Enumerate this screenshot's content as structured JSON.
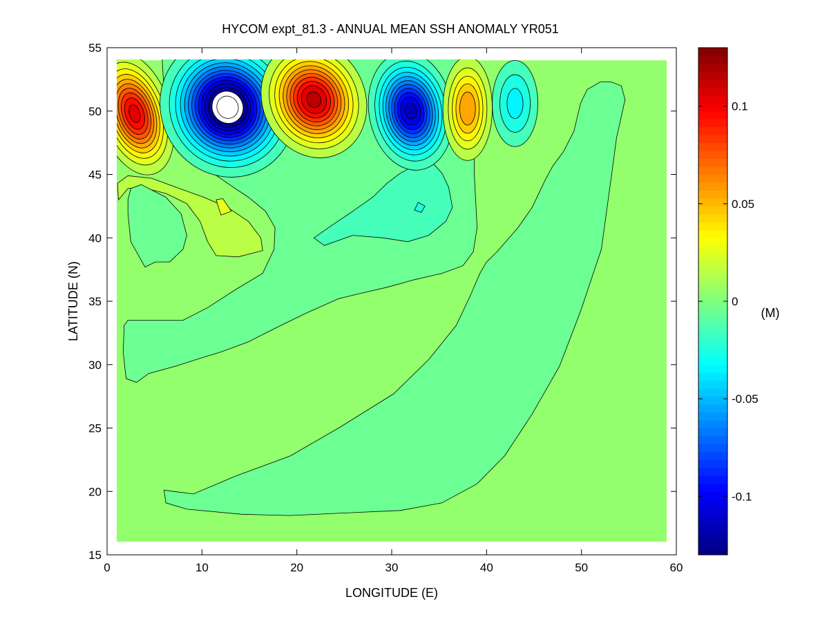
{
  "chart_data": {
    "type": "contour",
    "title": "HYCOM expt_81.3 - ANNUAL MEAN SSH ANOMALY YR051",
    "xlabel": "LONGITUDE (E)",
    "ylabel": "LATITUDE (N)",
    "xlim": [
      0,
      60
    ],
    "ylim": [
      15,
      55
    ],
    "data_extent": {
      "lon": [
        1,
        59
      ],
      "lat": [
        16,
        54
      ]
    },
    "xticks": [
      "0",
      "10",
      "20",
      "30",
      "40",
      "50",
      "60"
    ],
    "xtick_values": [
      0,
      10,
      20,
      30,
      40,
      50,
      60
    ],
    "yticks": [
      "15",
      "20",
      "25",
      "30",
      "35",
      "40",
      "45",
      "50",
      "55"
    ],
    "ytick_values": [
      15,
      20,
      25,
      30,
      35,
      40,
      45,
      50,
      55
    ],
    "contour_interval": 0.01,
    "background_value": 0.005,
    "colorbar": {
      "label": "(M)",
      "clim": [
        -0.13,
        0.13
      ],
      "ticks": [
        "-0.1",
        "-0.05",
        "0",
        "0.05",
        "0.1"
      ],
      "tick_values": [
        -0.1,
        -0.05,
        0,
        0.05,
        0.1
      ],
      "colormap": "jet"
    },
    "regions": [
      {
        "name": "negative-anomaly-band",
        "value": -0.005,
        "points": [
          [
            5.8,
            54.1
          ],
          [
            38.7,
            54.1
          ],
          [
            38.7,
            45.1
          ],
          [
            39.0,
            40.8
          ],
          [
            38.6,
            38.9
          ],
          [
            37.5,
            37.8
          ],
          [
            35.3,
            37.2
          ],
          [
            32.4,
            36.7
          ],
          [
            29.5,
            36.1
          ],
          [
            26.6,
            35.6
          ],
          [
            24.4,
            35.2
          ],
          [
            20.8,
            34.0
          ],
          [
            17.8,
            32.9
          ],
          [
            14.9,
            31.8
          ],
          [
            12.0,
            31.0
          ],
          [
            9.8,
            30.5
          ],
          [
            7.3,
            29.9
          ],
          [
            4.4,
            29.3
          ],
          [
            3.1,
            28.6
          ],
          [
            2.0,
            28.9
          ],
          [
            1.7,
            31.0
          ],
          [
            1.8,
            33.1
          ],
          [
            2.2,
            33.5
          ],
          [
            3.3,
            33.5
          ],
          [
            8.0,
            33.5
          ],
          [
            10.6,
            34.5
          ],
          [
            13.5,
            35.9
          ],
          [
            16.4,
            37.2
          ],
          [
            17.6,
            39.1
          ],
          [
            17.7,
            40.8
          ],
          [
            16.7,
            42.1
          ],
          [
            14.9,
            43.2
          ],
          [
            12.7,
            44.3
          ],
          [
            10.6,
            45.4
          ],
          [
            8.4,
            47.0
          ],
          [
            6.9,
            49.0
          ],
          [
            6.0,
            51.7
          ]
        ]
      },
      {
        "name": "negative-anomaly-tongue",
        "value": -0.005,
        "points": [
          [
            6.0,
            20.1
          ],
          [
            6.2,
            19.1
          ],
          [
            8.4,
            18.6
          ],
          [
            14.2,
            18.2
          ],
          [
            19.3,
            18.1
          ],
          [
            25.1,
            18.3
          ],
          [
            30.9,
            18.5
          ],
          [
            35.3,
            19.1
          ],
          [
            39.0,
            20.6
          ],
          [
            41.9,
            22.8
          ],
          [
            44.8,
            26.1
          ],
          [
            47.7,
            29.9
          ],
          [
            49.9,
            34.2
          ],
          [
            52.1,
            39.1
          ],
          [
            53.2,
            45.1
          ],
          [
            53.7,
            47.9
          ],
          [
            54.6,
            50.9
          ],
          [
            54.2,
            52.0
          ],
          [
            53.1,
            52.3
          ],
          [
            52.0,
            52.3
          ],
          [
            50.6,
            51.7
          ],
          [
            49.9,
            50.6
          ],
          [
            49.2,
            48.4
          ],
          [
            48.1,
            46.8
          ],
          [
            47.0,
            45.7
          ],
          [
            46.2,
            44.6
          ],
          [
            44.8,
            42.4
          ],
          [
            43.3,
            40.8
          ],
          [
            41.1,
            38.9
          ],
          [
            40.0,
            38.1
          ],
          [
            39.3,
            37.2
          ],
          [
            38.2,
            35.3
          ],
          [
            36.8,
            33.1
          ],
          [
            33.9,
            30.4
          ],
          [
            30.2,
            27.7
          ],
          [
            24.4,
            25.0
          ],
          [
            19.3,
            22.8
          ],
          [
            13.5,
            21.2
          ],
          [
            9.1,
            19.8
          ]
        ]
      },
      {
        "name": "positive-anomaly-arm",
        "value": 0.015,
        "points": [
          [
            1.1,
            44.3
          ],
          [
            2.2,
            44.9
          ],
          [
            4.7,
            44.7
          ],
          [
            7.6,
            43.9
          ],
          [
            10.2,
            43.2
          ],
          [
            12.7,
            42.4
          ],
          [
            14.9,
            41.3
          ],
          [
            16.2,
            40.0
          ],
          [
            16.4,
            39.0
          ],
          [
            13.8,
            38.5
          ],
          [
            11.5,
            38.6
          ],
          [
            10.6,
            39.7
          ],
          [
            9.8,
            41.3
          ],
          [
            8.4,
            42.7
          ],
          [
            6.2,
            43.5
          ],
          [
            3.6,
            44.0
          ],
          [
            2.2,
            43.9
          ],
          [
            1.2,
            43.0
          ]
        ]
      },
      {
        "name": "negative-anomaly-island",
        "value": -0.005,
        "points": [
          [
            2.5,
            43.9
          ],
          [
            3.6,
            44.2
          ],
          [
            6.2,
            43.2
          ],
          [
            7.8,
            41.9
          ],
          [
            8.4,
            40.2
          ],
          [
            8.0,
            39.1
          ],
          [
            6.6,
            38.1
          ],
          [
            5.1,
            38.1
          ],
          [
            4.0,
            37.7
          ],
          [
            2.5,
            39.7
          ],
          [
            2.2,
            41.9
          ],
          [
            2.2,
            43.0
          ]
        ]
      },
      {
        "name": "positive-anomaly-spot",
        "value": 0.025,
        "points": [
          [
            11.5,
            43.0
          ],
          [
            12.2,
            43.1
          ],
          [
            13.1,
            42.1
          ],
          [
            12.0,
            41.8
          ]
        ]
      },
      {
        "name": "negative-anomaly-plume",
        "value": -0.015,
        "points": [
          [
            21.8,
            40.0
          ],
          [
            23.7,
            41.0
          ],
          [
            25.9,
            42.1
          ],
          [
            28.0,
            43.2
          ],
          [
            29.5,
            44.3
          ],
          [
            30.9,
            45.1
          ],
          [
            32.4,
            45.7
          ],
          [
            34.2,
            46.0
          ],
          [
            35.3,
            45.1
          ],
          [
            36.0,
            44.0
          ],
          [
            36.4,
            42.4
          ],
          [
            35.7,
            41.3
          ],
          [
            33.9,
            40.2
          ],
          [
            31.7,
            39.7
          ],
          [
            29.1,
            40.0
          ],
          [
            25.9,
            40.2
          ],
          [
            22.9,
            39.4
          ]
        ]
      },
      {
        "name": "negative-anomaly-spot",
        "value": -0.025,
        "points": [
          [
            32.8,
            42.8
          ],
          [
            33.5,
            42.5
          ],
          [
            33.1,
            42.0
          ],
          [
            32.4,
            42.2
          ]
        ]
      }
    ],
    "eddies": [
      {
        "lon": 2.9,
        "lat": 49.8,
        "rlon": 3.8,
        "rlat": 5.0,
        "peak": 0.105,
        "rotate": -18
      },
      {
        "lon": 12.7,
        "lat": 50.3,
        "rlon": 7.0,
        "rlat": 5.6,
        "peak": -0.15,
        "rotate": -30
      },
      {
        "lon": 21.8,
        "lat": 50.9,
        "rlon": 5.4,
        "rlat": 4.7,
        "peak": 0.115,
        "rotate": -25
      },
      {
        "lon": 32.0,
        "lat": 50.0,
        "rlon": 4.4,
        "rlat": 4.7,
        "peak": -0.115,
        "rotate": -10
      },
      {
        "lon": 38.0,
        "lat": 50.2,
        "rlon": 2.6,
        "rlat": 4.1,
        "peak": 0.06,
        "rotate": 0
      },
      {
        "lon": 43.0,
        "lat": 50.6,
        "rlon": 2.4,
        "rlat": 3.4,
        "peak": -0.035,
        "rotate": 0
      }
    ]
  }
}
